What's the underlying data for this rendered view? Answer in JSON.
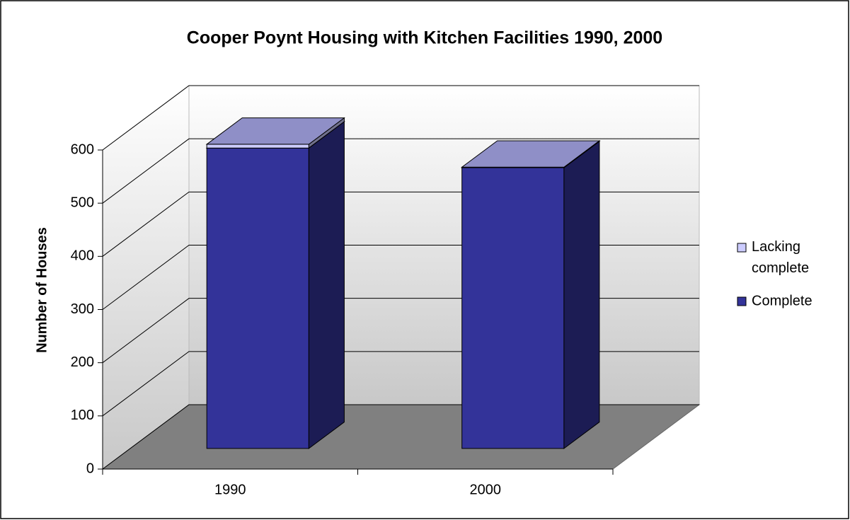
{
  "chart_data": {
    "type": "bar",
    "stacked": true,
    "title": "Cooper Poynt Housing with Kitchen Facilities 1990, 2000",
    "categories": [
      "1990",
      "2000"
    ],
    "y_label": "Number of Houses",
    "series": [
      {
        "name": "Complete",
        "color": "#333399",
        "values": [
          565,
          528
        ]
      },
      {
        "name": "Lacking complete",
        "color": "#ccccff",
        "values": [
          7,
          1
        ]
      }
    ],
    "ylim": [
      0,
      600
    ],
    "yticks": [
      0,
      100,
      200,
      300,
      400,
      500,
      600
    ],
    "grid": true,
    "legend": "right"
  }
}
